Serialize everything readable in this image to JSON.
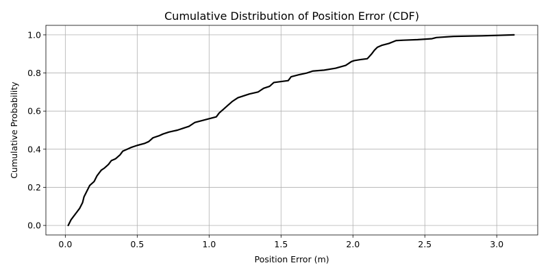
{
  "chart_data": {
    "type": "line",
    "title": "Cumulative Distribution of Position Error (CDF)",
    "xlabel": "Position Error (m)",
    "ylabel": "Cumulative Probability",
    "xlim": [
      -0.135,
      3.285
    ],
    "ylim": [
      -0.05,
      1.05
    ],
    "xticks": [
      0.0,
      0.5,
      1.0,
      1.5,
      2.0,
      2.5,
      3.0
    ],
    "xtick_labels": [
      "0.0",
      "0.5",
      "1.0",
      "1.5",
      "2.0",
      "2.5",
      "3.0"
    ],
    "yticks": [
      0.0,
      0.2,
      0.4,
      0.6,
      0.8,
      1.0
    ],
    "ytick_labels": [
      "0.0",
      "0.2",
      "0.4",
      "0.6",
      "0.8",
      "1.0"
    ],
    "grid": true,
    "legend": "none",
    "series": [
      {
        "color": "#000000",
        "x": [
          0.02,
          0.04,
          0.06,
          0.08,
          0.1,
          0.12,
          0.13,
          0.15,
          0.17,
          0.2,
          0.22,
          0.25,
          0.27,
          0.3,
          0.32,
          0.35,
          0.38,
          0.4,
          0.43,
          0.46,
          0.5,
          0.55,
          0.58,
          0.61,
          0.65,
          0.68,
          0.72,
          0.78,
          0.82,
          0.86,
          0.9,
          0.95,
          1.0,
          1.05,
          1.07,
          1.1,
          1.13,
          1.16,
          1.2,
          1.24,
          1.28,
          1.34,
          1.38,
          1.42,
          1.45,
          1.5,
          1.55,
          1.57,
          1.62,
          1.68,
          1.72,
          1.8,
          1.88,
          1.95,
          1.99,
          2.01,
          2.05,
          2.1,
          2.13,
          2.15,
          2.17,
          2.2,
          2.25,
          2.3,
          2.35,
          2.45,
          2.55,
          2.58,
          2.7,
          2.9,
          3.12
        ],
        "y": [
          0.0,
          0.03,
          0.05,
          0.07,
          0.09,
          0.12,
          0.15,
          0.18,
          0.21,
          0.23,
          0.26,
          0.29,
          0.3,
          0.32,
          0.34,
          0.35,
          0.37,
          0.39,
          0.4,
          0.41,
          0.42,
          0.43,
          0.44,
          0.46,
          0.47,
          0.48,
          0.49,
          0.5,
          0.51,
          0.52,
          0.54,
          0.55,
          0.56,
          0.57,
          0.59,
          0.61,
          0.63,
          0.65,
          0.67,
          0.68,
          0.69,
          0.7,
          0.72,
          0.73,
          0.75,
          0.755,
          0.76,
          0.78,
          0.79,
          0.8,
          0.81,
          0.815,
          0.825,
          0.84,
          0.86,
          0.865,
          0.87,
          0.875,
          0.9,
          0.92,
          0.935,
          0.945,
          0.955,
          0.97,
          0.972,
          0.975,
          0.98,
          0.986,
          0.992,
          0.995,
          1.0
        ]
      }
    ]
  }
}
